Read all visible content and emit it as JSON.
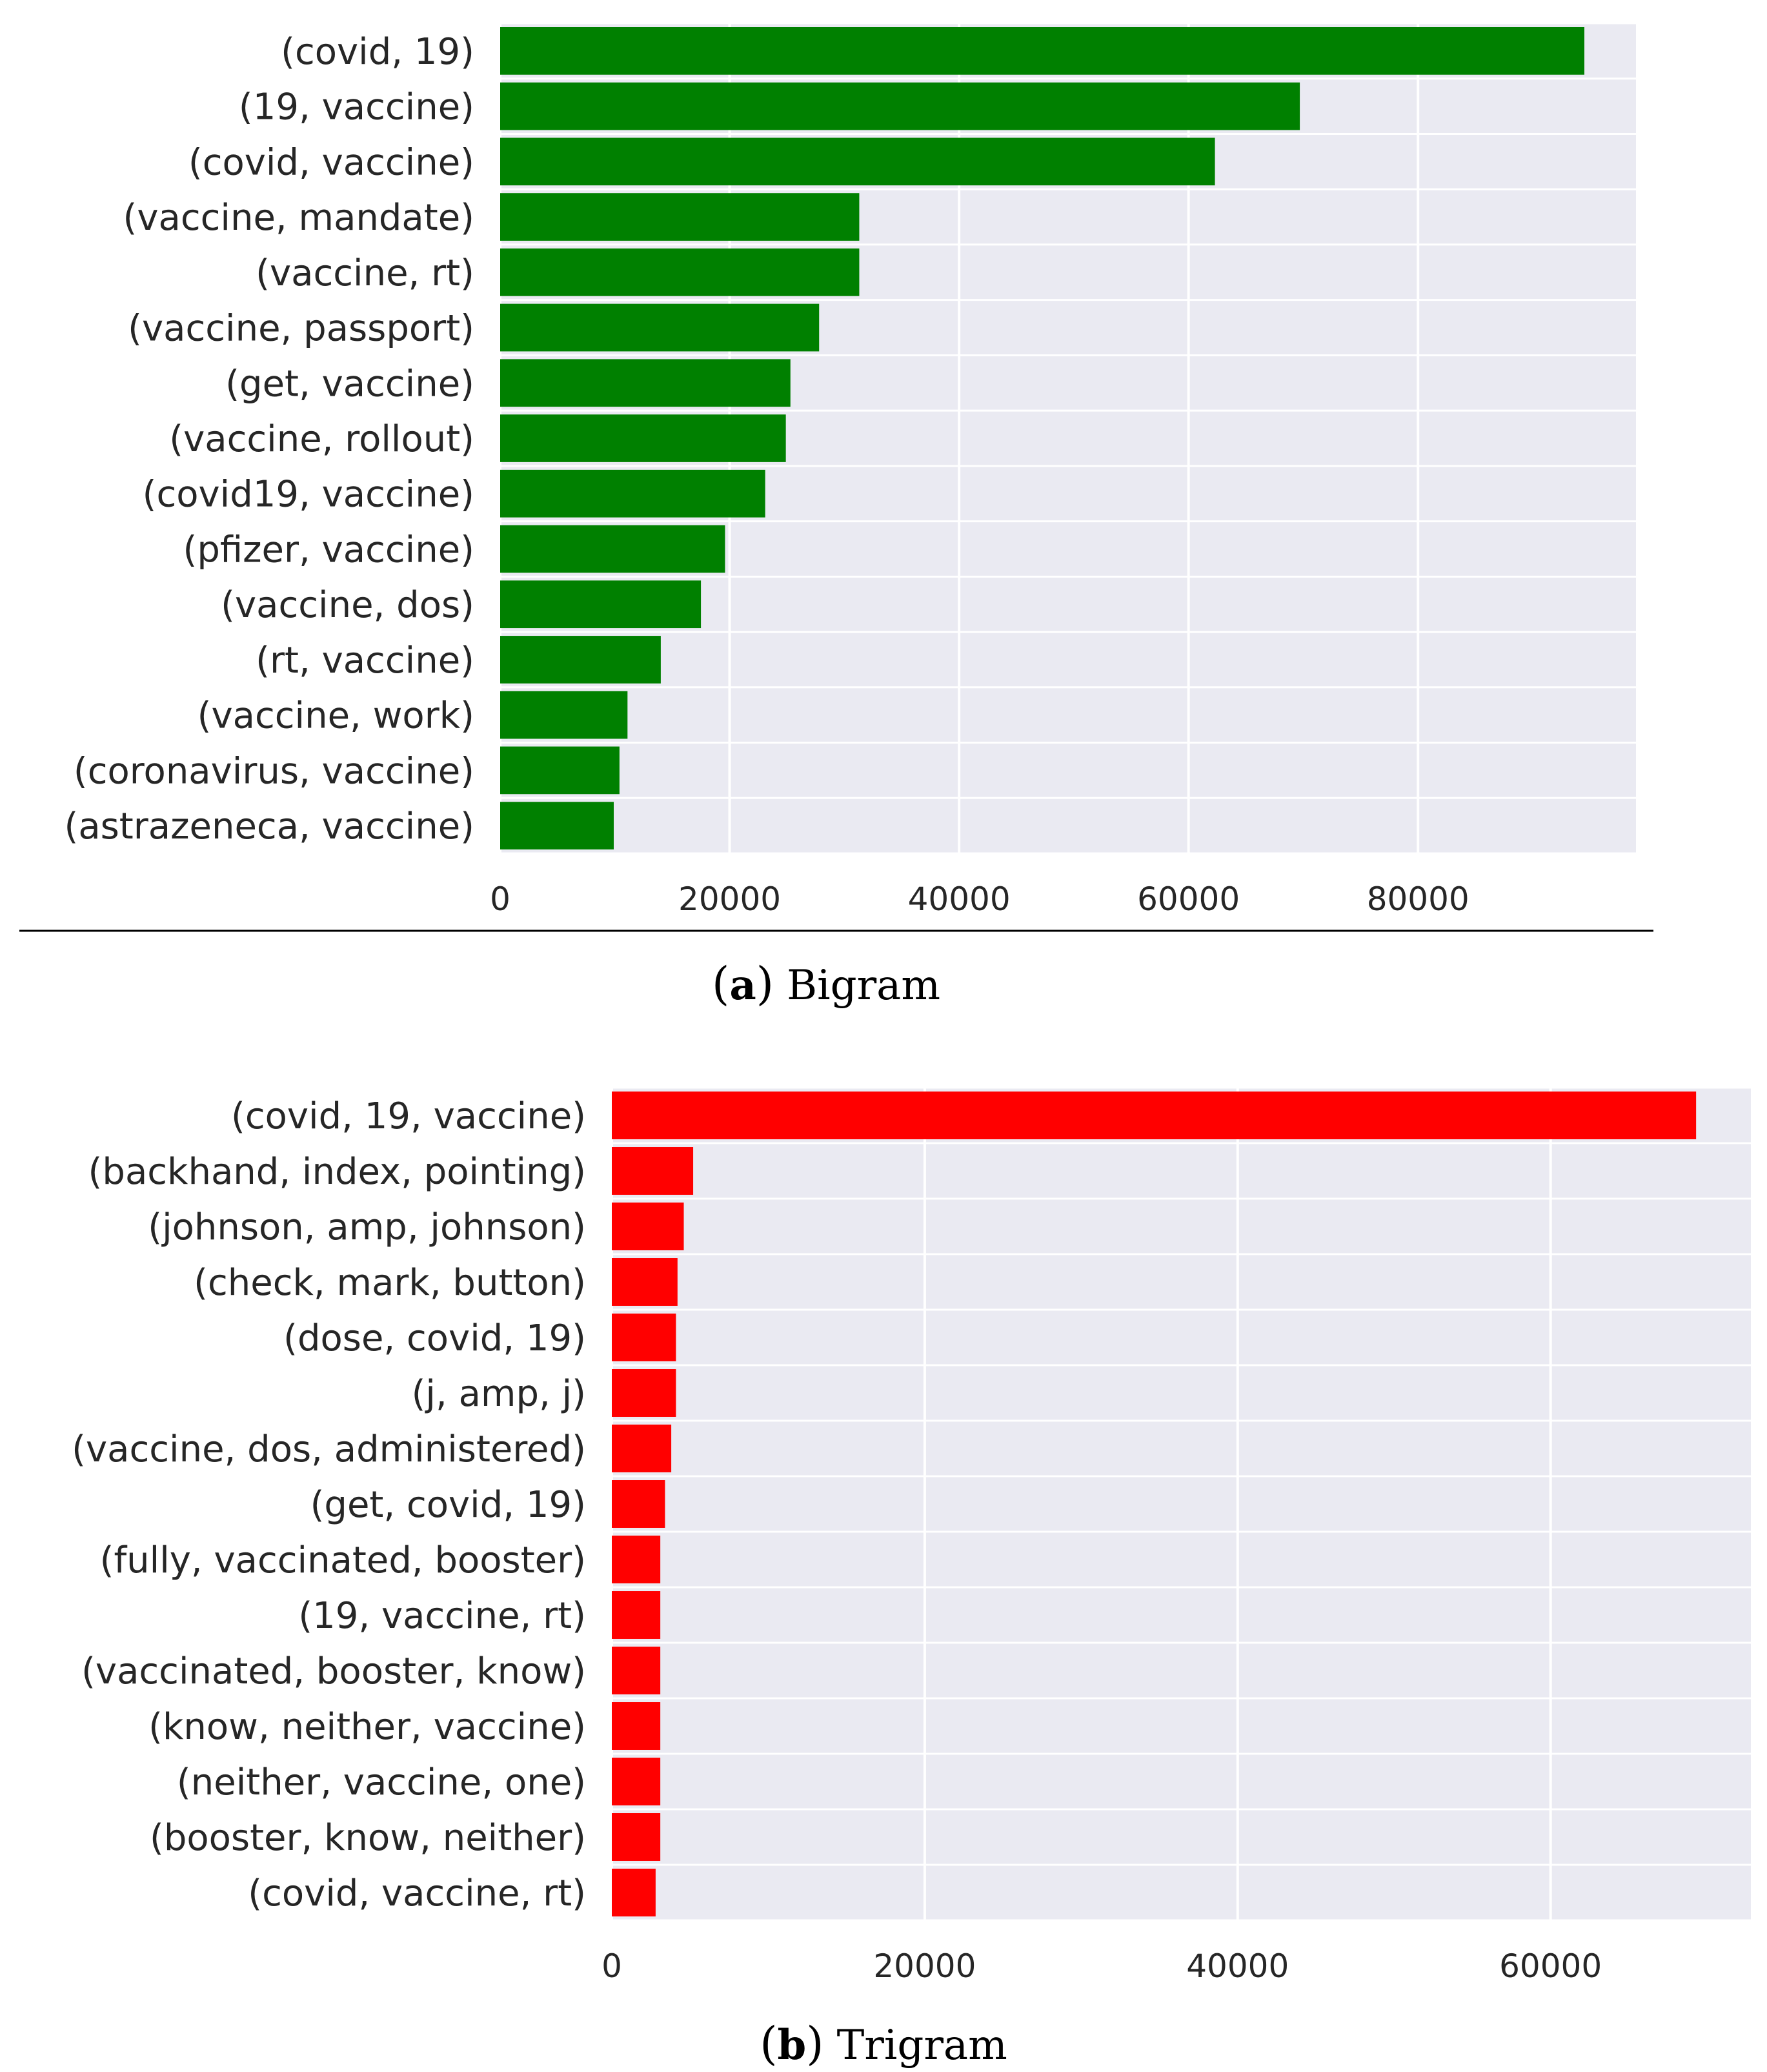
{
  "figures": [
    {
      "caption_letter": "a",
      "caption_text": "Bigram"
    },
    {
      "caption_letter": "b",
      "caption_text": "Trigram"
    }
  ],
  "chart_data": [
    {
      "type": "bar",
      "orientation": "horizontal",
      "title": "",
      "xlabel": "",
      "ylabel": "",
      "bar_color": "#008000",
      "background_color": "#eaeaf2",
      "grid": true,
      "xlim": [
        0,
        99000
      ],
      "xticks": [
        0,
        20000,
        40000,
        60000,
        80000
      ],
      "categories": [
        "(covid, 19)",
        "(19, vaccine)",
        "(covid, vaccine)",
        "(vaccine, mandate)",
        "(vaccine, rt)",
        "(vaccine, passport)",
        "(get, vaccine)",
        "(vaccine, rollout)",
        "(covid19, vaccine)",
        "(pfizer, vaccine)",
        "(vaccine, dos)",
        "(rt, vaccine)",
        "(vaccine, work)",
        "(coronavirus, vaccine)",
        "(astrazeneca, vaccine)"
      ],
      "values": [
        94500,
        69700,
        62300,
        31300,
        31300,
        27800,
        25300,
        24900,
        23100,
        19600,
        17500,
        14000,
        11100,
        10400,
        9900
      ]
    },
    {
      "type": "bar",
      "orientation": "horizontal",
      "title": "",
      "xlabel": "",
      "ylabel": "",
      "bar_color": "#ff0000",
      "background_color": "#eaeaf2",
      "grid": true,
      "xlim": [
        0,
        72800
      ],
      "xticks": [
        0,
        20000,
        40000,
        60000
      ],
      "categories": [
        "(covid, 19, vaccine)",
        "(backhand, index, pointing)",
        "(johnson, amp, johnson)",
        "(check, mark, button)",
        "(dose, covid, 19)",
        "(j, amp, j)",
        "(vaccine, dos, administered)",
        "(get, covid, 19)",
        "(fully, vaccinated, booster)",
        "(19, vaccine, rt)",
        "(vaccinated, booster, know)",
        "(know, neither, vaccine)",
        "(neither, vaccine, one)",
        "(booster, know, neither)",
        "(covid, vaccine, rt)"
      ],
      "values": [
        69300,
        5200,
        4600,
        4200,
        4100,
        4100,
        3800,
        3400,
        3100,
        3100,
        3100,
        3100,
        3100,
        3100,
        2800
      ]
    }
  ]
}
